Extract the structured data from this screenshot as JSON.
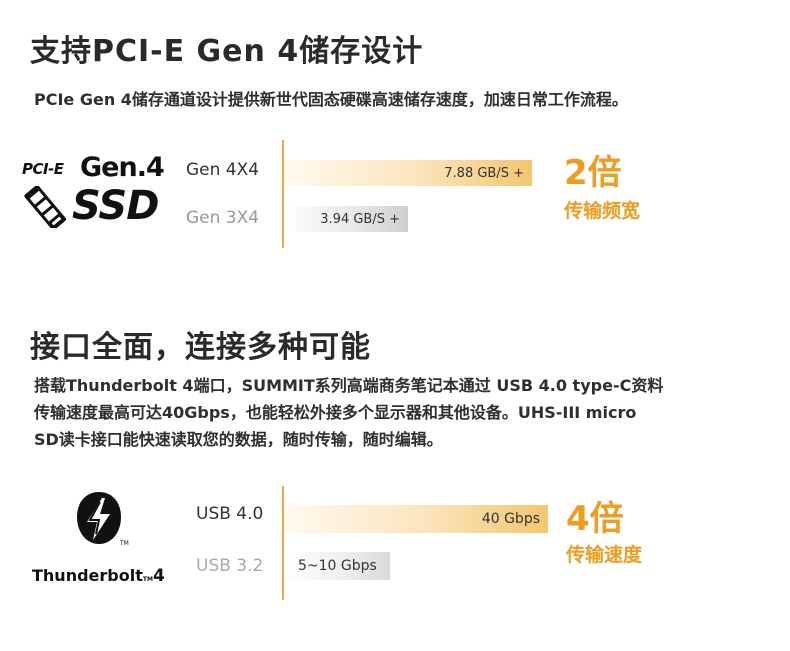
{
  "section1": {
    "title": "支持PCI-E Gen 4储存设计",
    "desc": "PCIe Gen 4储存通道设计提供新世代固态硬碟高速储存速度，加速日常工作流程。",
    "logo": {
      "line1_left": "PCI-E",
      "line1_right": "Gen.4",
      "line2": "SSD",
      "icon": "ssd-chip-icon"
    },
    "rows": [
      {
        "label": "Gen 4X4",
        "value": "7.88 GB/S +",
        "fraction": 1.0
      },
      {
        "label": "Gen 3X4",
        "value": "3.94 GB/S +",
        "fraction": 0.5
      }
    ],
    "highlight": {
      "big": "2倍",
      "sub": "传输频宽"
    }
  },
  "section2": {
    "title": "接口全面，连接多种可能",
    "desc_lines": [
      "搭载Thunderbolt 4端口，SUMMIT系列高端商务笔记本通过 USB 4.0 type-C资料",
      "传输速度最高可达40Gbps，也能轻松外接多个显示器和其他设备。UHS-III  micro",
      "SD读卡接口能快速读取您的数据，随时传输，随时编辑。"
    ],
    "logo": {
      "text": "Thunderbolt",
      "tm": "TM",
      "num": "4",
      "icon": "thunderbolt-bolt-icon"
    },
    "rows": [
      {
        "label": "USB 4.0",
        "value": "40 Gbps",
        "fraction": 1.0
      },
      {
        "label": "USB 3.2",
        "value": "5~10 Gbps",
        "fraction": 0.4
      }
    ],
    "highlight": {
      "big": "4倍",
      "sub": "传输速度"
    },
    "colors": {
      "accent": "#f09c1e",
      "bar_gold": "#f4c66e",
      "bar_gray": "#cfcfcf"
    }
  }
}
